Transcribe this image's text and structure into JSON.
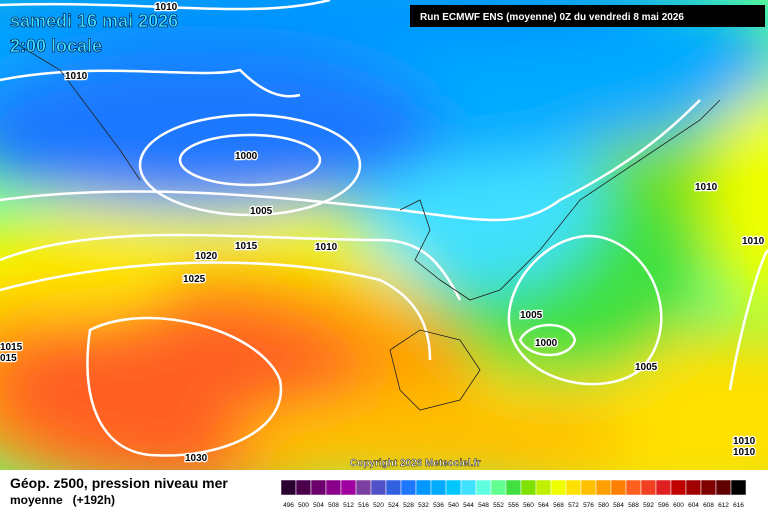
{
  "header": {
    "date": "samedi 16 mai 2026",
    "time": "2:00 locale",
    "run": "Run ECMWF ENS (moyenne) 0Z du vendredi 8 mai 2026",
    "copyright": "Copyright 2026 Meteociel.fr"
  },
  "map": {
    "isobar_labels": [
      "1010",
      "1010",
      "1000",
      "1005",
      "1015",
      "1010",
      "1020",
      "1025",
      "1030",
      "1015",
      "015",
      "1005",
      "1000",
      "1005",
      "1010",
      "1010",
      "1010",
      "1010"
    ]
  },
  "legend": {
    "title": "Géop. z500, pression niveau mer",
    "subtitle": "moyenne   (+192h)",
    "scale": [
      496,
      500,
      504,
      508,
      512,
      516,
      520,
      524,
      528,
      532,
      536,
      540,
      544,
      548,
      552,
      556,
      560,
      564,
      568,
      572,
      576,
      580,
      584,
      588,
      592,
      596,
      600,
      604,
      608,
      612,
      616
    ],
    "colors": [
      "#2a0030",
      "#4b004b",
      "#6e006e",
      "#8b008b",
      "#a000a0",
      "#7a3fa0",
      "#5050c8",
      "#3060e0",
      "#1e78ff",
      "#0096ff",
      "#00aaff",
      "#00c8ff",
      "#40e0ff",
      "#60ffe0",
      "#60ff90",
      "#40e040",
      "#80e000",
      "#c0f000",
      "#f0ff00",
      "#ffe000",
      "#ffc000",
      "#ffa000",
      "#ff8000",
      "#ff6020",
      "#f04020",
      "#e02020",
      "#c00000",
      "#a00000",
      "#800000",
      "#600000",
      "#000000"
    ]
  }
}
